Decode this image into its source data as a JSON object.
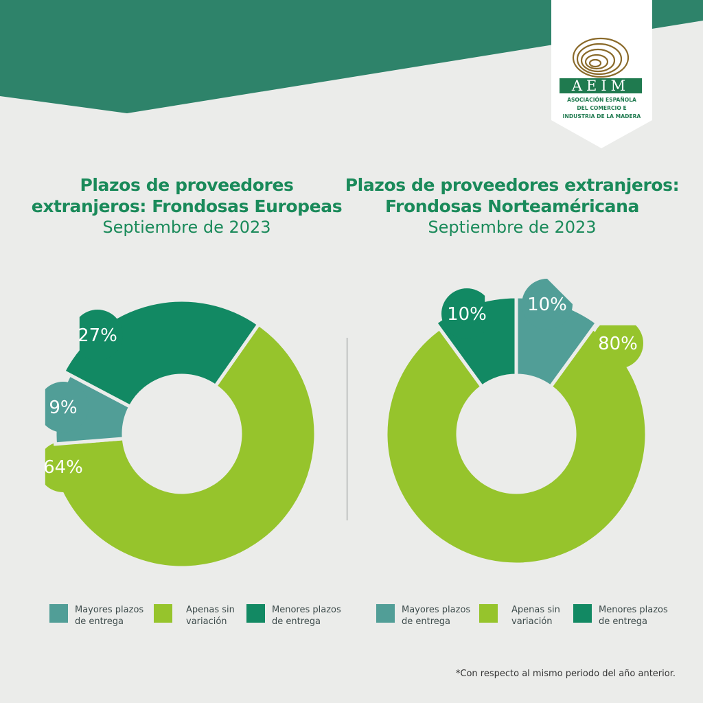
{
  "logo": {
    "name": "AEIM",
    "lines": [
      "ASOCIACIÓN ESPAÑOLA",
      "DEL COMERCIO E",
      "INDUSTRIA DE LA MADERA"
    ]
  },
  "colors": {
    "banner": "#2e836a",
    "background": "#ebecea",
    "mayores": "#519e97",
    "apenas": "#96c42c",
    "menores": "#128963",
    "title": "#1a8a5a"
  },
  "charts": [
    {
      "title_line1": "Plazos de proveedores",
      "title_line2": "extranjeros: Frondosas Europeas",
      "subtitle": "Septiembre de 2023",
      "legend": [
        {
          "label": "Mayores plazos de entrega",
          "line1": "Mayores plazos",
          "line2": "de entrega"
        },
        {
          "label": "Apenas sin variación",
          "line1": "Apenas sin",
          "line2": "variación"
        },
        {
          "label": "Menores plazos de entrega",
          "line1": "Menores plazos",
          "line2": "de entrega"
        }
      ]
    },
    {
      "title_line1": "Plazos de proveedores extranjeros:",
      "title_line2": "Frondosas Norteaméricana",
      "subtitle": "Septiembre de 2023",
      "legend": [
        {
          "label": "Mayores plazos de entrega",
          "line1": "Mayores plazos",
          "line2": "de entrega"
        },
        {
          "label": "Apenas sin variación",
          "line1": "Apenas sin",
          "line2": "variación"
        },
        {
          "label": "Menores plazos de entrega",
          "line1": "Menores plazos",
          "line2": "de entrega"
        }
      ]
    }
  ],
  "chart_data": [
    {
      "type": "pie",
      "title": "Plazos de proveedores extranjeros: Frondosas Europeas",
      "subtitle": "Septiembre de 2023",
      "categories": [
        "Mayores plazos de entrega",
        "Apenas sin variación",
        "Menores plazos de entrega"
      ],
      "values": [
        9,
        64,
        27
      ],
      "labels": [
        "9%",
        "64%",
        "27%"
      ],
      "colors": [
        "#519e97",
        "#96c42c",
        "#128963"
      ]
    },
    {
      "type": "pie",
      "title": "Plazos de proveedores extranjeros: Frondosas Norteaméricana",
      "subtitle": "Septiembre de 2023",
      "categories": [
        "Mayores plazos de entrega",
        "Apenas sin variación",
        "Menores plazos de entrega"
      ],
      "values": [
        10,
        80,
        10
      ],
      "labels": [
        "10%",
        "80%",
        "10%"
      ],
      "colors": [
        "#519e97",
        "#96c42c",
        "#128963"
      ]
    }
  ],
  "footnote": "*Con respecto al mismo periodo del año anterior."
}
